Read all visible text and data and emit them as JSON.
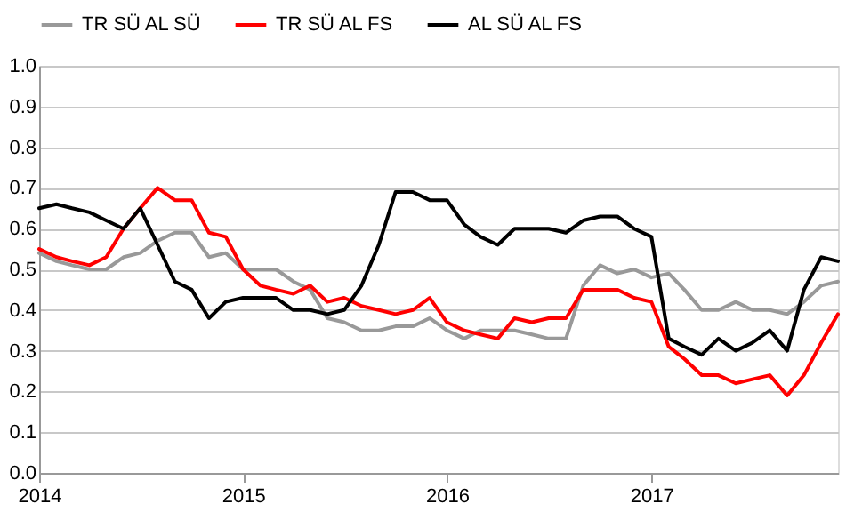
{
  "chart_data": {
    "type": "line",
    "x": [
      "2014-01",
      "2014-02",
      "2014-03",
      "2014-04",
      "2014-05",
      "2014-06",
      "2014-07",
      "2014-08",
      "2014-09",
      "2014-10",
      "2014-11",
      "2014-12",
      "2015-01",
      "2015-02",
      "2015-03",
      "2015-04",
      "2015-05",
      "2015-06",
      "2015-07",
      "2015-08",
      "2015-09",
      "2015-10",
      "2015-11",
      "2015-12",
      "2016-01",
      "2016-02",
      "2016-03",
      "2016-04",
      "2016-05",
      "2016-06",
      "2016-07",
      "2016-08",
      "2016-09",
      "2016-10",
      "2016-11",
      "2016-12",
      "2017-01",
      "2017-02",
      "2017-03",
      "2017-04",
      "2017-05",
      "2017-06",
      "2017-07",
      "2017-08",
      "2017-09",
      "2017-10",
      "2017-11",
      "2017-12"
    ],
    "series": [
      {
        "name": "TR SÜ AL SÜ",
        "color": "#999999",
        "values": [
          0.54,
          0.52,
          0.51,
          0.5,
          0.5,
          0.53,
          0.54,
          0.57,
          0.59,
          0.59,
          0.53,
          0.54,
          0.5,
          0.5,
          0.5,
          0.47,
          0.45,
          0.38,
          0.37,
          0.35,
          0.35,
          0.36,
          0.36,
          0.38,
          0.35,
          0.33,
          0.35,
          0.35,
          0.35,
          0.34,
          0.33,
          0.33,
          0.46,
          0.51,
          0.49,
          0.5,
          0.48,
          0.49,
          0.45,
          0.4,
          0.4,
          0.42,
          0.4,
          0.4,
          0.39,
          0.42,
          0.46,
          0.47
        ]
      },
      {
        "name": "TR SÜ AL FS",
        "color": "#ff0000",
        "values": [
          0.55,
          0.53,
          0.52,
          0.51,
          0.53,
          0.6,
          0.65,
          0.7,
          0.67,
          0.67,
          0.59,
          0.58,
          0.5,
          0.46,
          0.45,
          0.44,
          0.46,
          0.42,
          0.43,
          0.41,
          0.4,
          0.39,
          0.4,
          0.43,
          0.37,
          0.35,
          0.34,
          0.33,
          0.38,
          0.37,
          0.38,
          0.38,
          0.45,
          0.45,
          0.45,
          0.43,
          0.42,
          0.31,
          0.28,
          0.24,
          0.24,
          0.22,
          0.23,
          0.24,
          0.19,
          0.24,
          0.32,
          0.39
        ]
      },
      {
        "name": "AL SÜ AL FS",
        "color": "#000000",
        "values": [
          0.65,
          0.66,
          0.65,
          0.64,
          0.62,
          0.6,
          0.65,
          0.56,
          0.47,
          0.45,
          0.38,
          0.42,
          0.43,
          0.43,
          0.43,
          0.4,
          0.4,
          0.39,
          0.4,
          0.46,
          0.56,
          0.69,
          0.69,
          0.67,
          0.67,
          0.61,
          0.58,
          0.56,
          0.6,
          0.6,
          0.6,
          0.59,
          0.62,
          0.63,
          0.63,
          0.6,
          0.58,
          0.33,
          0.31,
          0.29,
          0.33,
          0.3,
          0.32,
          0.35,
          0.3,
          0.45,
          0.53,
          0.52
        ]
      }
    ],
    "xlim": [
      "2014-01",
      "2017-12"
    ],
    "xticks": [
      {
        "value": "2014-01",
        "label": "2014"
      },
      {
        "value": "2015-01",
        "label": "2015"
      },
      {
        "value": "2016-01",
        "label": "2016"
      },
      {
        "value": "2017-01",
        "label": "2017"
      }
    ],
    "ylim": [
      0,
      1
    ],
    "yticks": [
      {
        "value": 0,
        "label": "0.0"
      },
      {
        "value": 0.1,
        "label": "0.1"
      },
      {
        "value": 0.2,
        "label": "0.2"
      },
      {
        "value": 0.3,
        "label": "0.3"
      },
      {
        "value": 0.4,
        "label": "0.4"
      },
      {
        "value": 0.5,
        "label": "0.5"
      },
      {
        "value": 0.6,
        "label": "0.6"
      },
      {
        "value": 0.7,
        "label": "0.7"
      },
      {
        "value": 0.8,
        "label": "0.8"
      },
      {
        "value": 0.9,
        "label": "0.9"
      },
      {
        "value": 1,
        "label": "1.0"
      }
    ],
    "grid": "y",
    "legend": "top",
    "marker": "none",
    "line_style": "solid"
  }
}
